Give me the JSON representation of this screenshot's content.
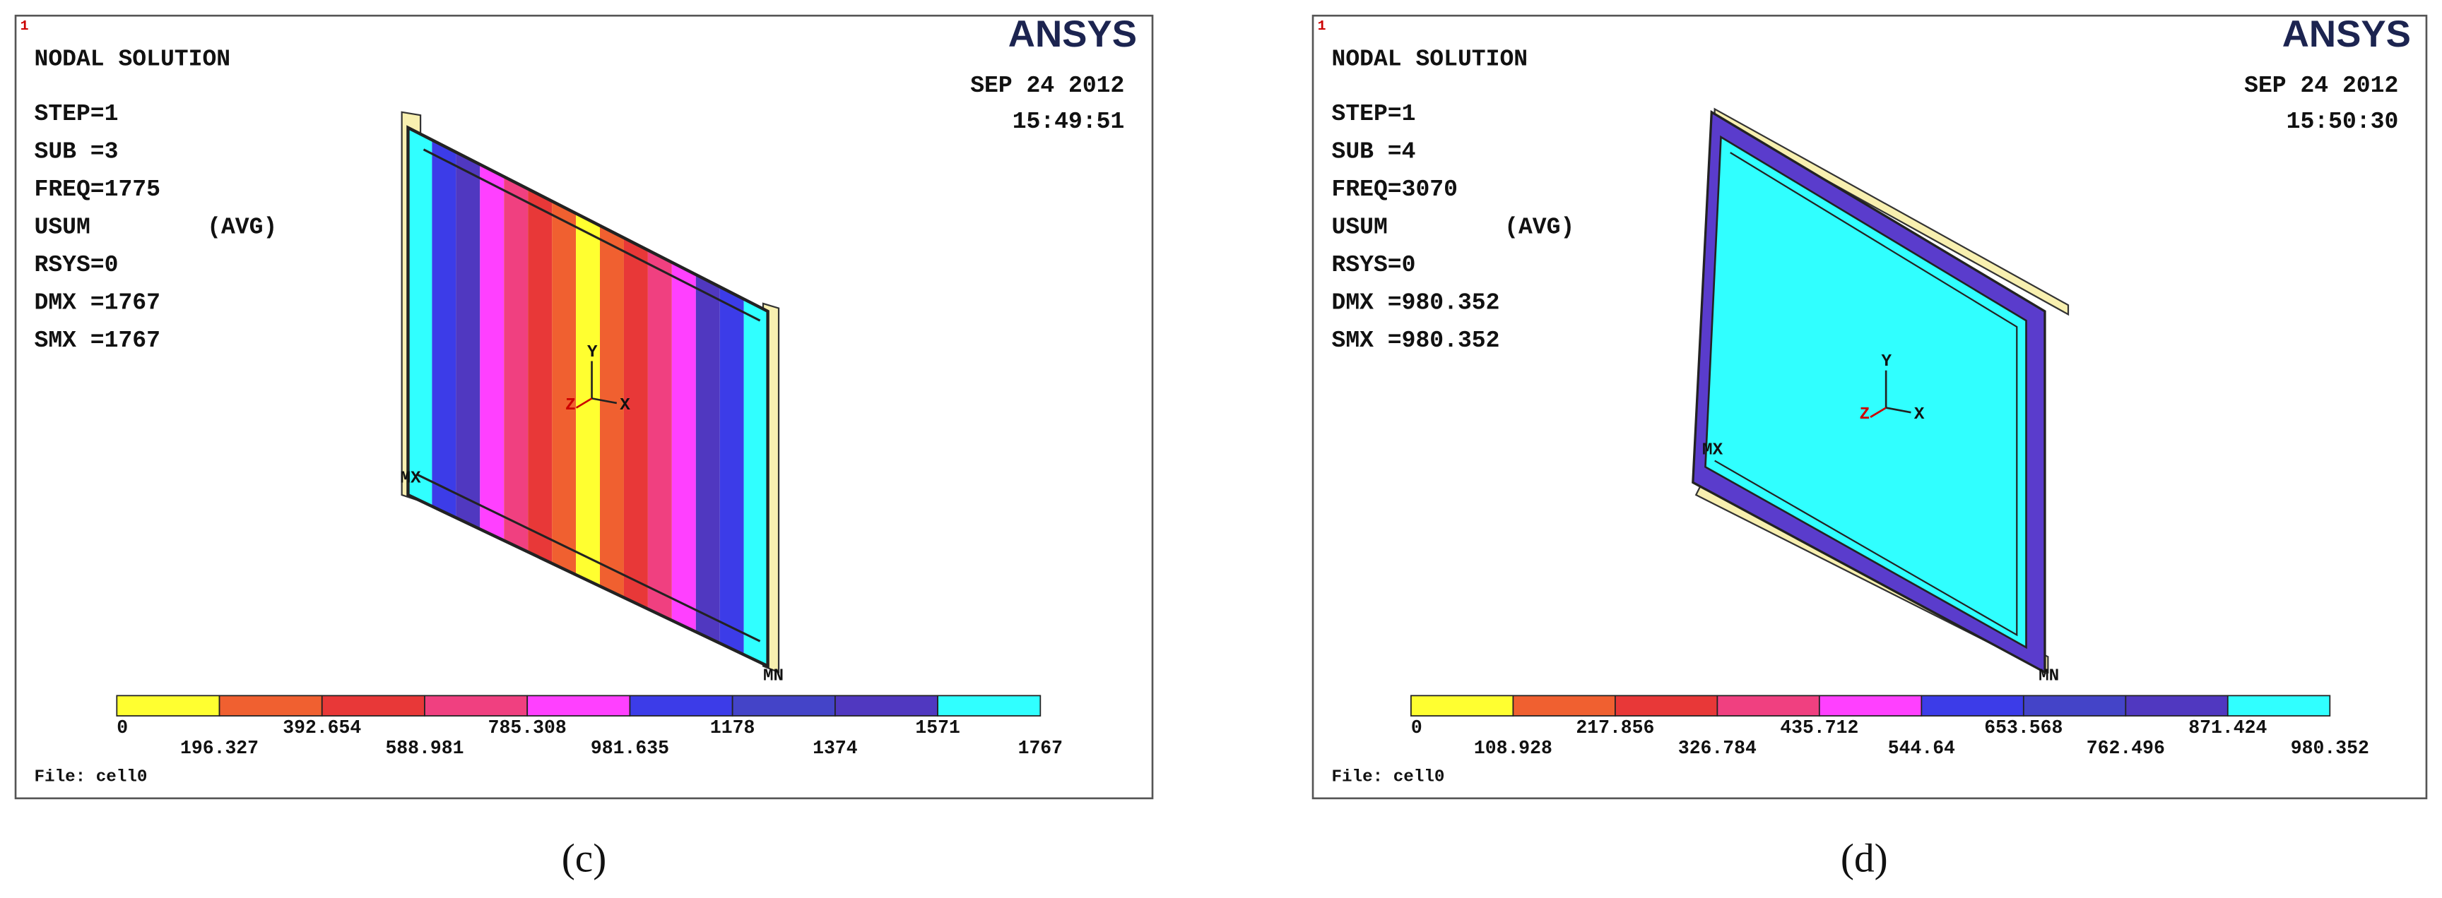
{
  "panels": [
    {
      "plot_number": "1",
      "logo": "ANSYS",
      "title": "NODAL SOLUTION",
      "info": [
        "STEP=1",
        "SUB =3",
        "FREQ=1775",
        "USUM",
        "RSYS=0",
        "DMX =1767",
        "SMX =1767"
      ],
      "avg": "(AVG)",
      "date": "SEP 24 2012",
      "time": "15:49:51",
      "triad": [
        "Y",
        "X",
        "Z"
      ],
      "max_label": "MX",
      "min_label": "MN",
      "legend": [
        "0",
        "196.327",
        "392.654",
        "588.981",
        "785.308",
        "981.635",
        "1178",
        "1374",
        "1571",
        "1767"
      ],
      "file": "File: cell0",
      "caption": "(c)"
    },
    {
      "plot_number": "1",
      "logo": "ANSYS",
      "title": "NODAL SOLUTION",
      "info": [
        "STEP=1",
        "SUB =4",
        "FREQ=3070",
        "USUM",
        "RSYS=0",
        "DMX =980.352",
        "SMX =980.352"
      ],
      "avg": "(AVG)",
      "date": "SEP 24 2012",
      "time": "15:50:30",
      "triad": [
        "Y",
        "X",
        "Z"
      ],
      "max_label": "MX",
      "min_label": "MN",
      "legend": [
        "0",
        "108.928",
        "217.856",
        "326.784",
        "435.712",
        "544.64",
        "653.568",
        "762.496",
        "871.424",
        "980.352"
      ],
      "file": "File: cell0",
      "caption": "(d)"
    }
  ]
}
